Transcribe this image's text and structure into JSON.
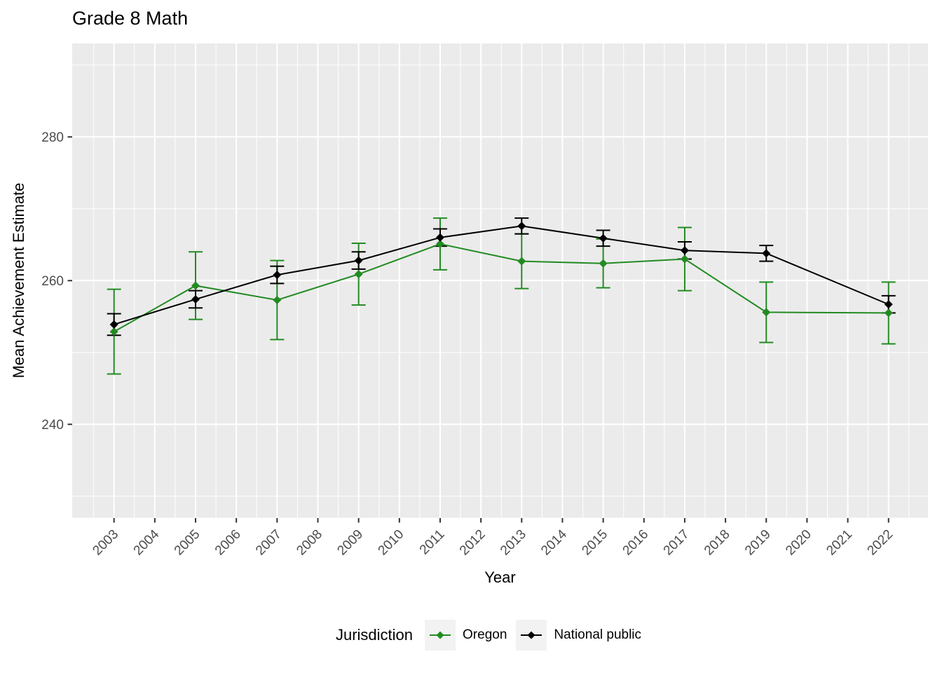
{
  "title": "Grade 8 Math",
  "colors": {
    "panel_bg": "#EBEBEB",
    "grid": "#FFFFFF",
    "axis_text": "#4D4D4D",
    "tick_mark": "#333333",
    "oregon_green": "#228B22",
    "national_black": "#000000",
    "legend_key_bg": "#F2F2F2"
  },
  "chart_data": {
    "type": "line",
    "title": "Grade 8 Math",
    "xlabel": "Year",
    "ylabel": "Mean Achievement Estimate",
    "legend_title": "Jurisdiction",
    "legend_position": "bottom",
    "grid": "white major+minor gridlines on gray panel",
    "x": [
      2003,
      2005,
      2007,
      2009,
      2011,
      2013,
      2015,
      2017,
      2019,
      2022
    ],
    "x_ticks": [
      2003,
      2004,
      2005,
      2006,
      2007,
      2008,
      2009,
      2010,
      2011,
      2012,
      2013,
      2014,
      2015,
      2016,
      2017,
      2018,
      2019,
      2020,
      2021,
      2022
    ],
    "y_ticks": [
      240,
      260,
      280
    ],
    "y_minor_ticks": [
      230,
      250,
      270,
      290
    ],
    "xlim": [
      2002.05,
      2022.95
    ],
    "ylim": [
      227,
      293
    ],
    "series": [
      {
        "name": "Oregon",
        "color": "#228B22",
        "marker": "diamond",
        "values": [
          252.9,
          259.3,
          257.3,
          260.9,
          265.1,
          262.7,
          262.4,
          263.0,
          255.6,
          255.5
        ],
        "error_margin": [
          5.9,
          4.7,
          5.5,
          4.3,
          3.6,
          3.8,
          3.4,
          4.4,
          4.2,
          4.3
        ]
      },
      {
        "name": "National public",
        "color": "#000000",
        "marker": "diamond",
        "values": [
          253.9,
          257.4,
          260.8,
          262.8,
          266.0,
          267.6,
          265.9,
          264.2,
          263.8,
          256.7
        ],
        "error_margin": [
          1.5,
          1.2,
          1.2,
          1.2,
          1.2,
          1.1,
          1.1,
          1.2,
          1.1,
          1.2
        ]
      }
    ]
  }
}
